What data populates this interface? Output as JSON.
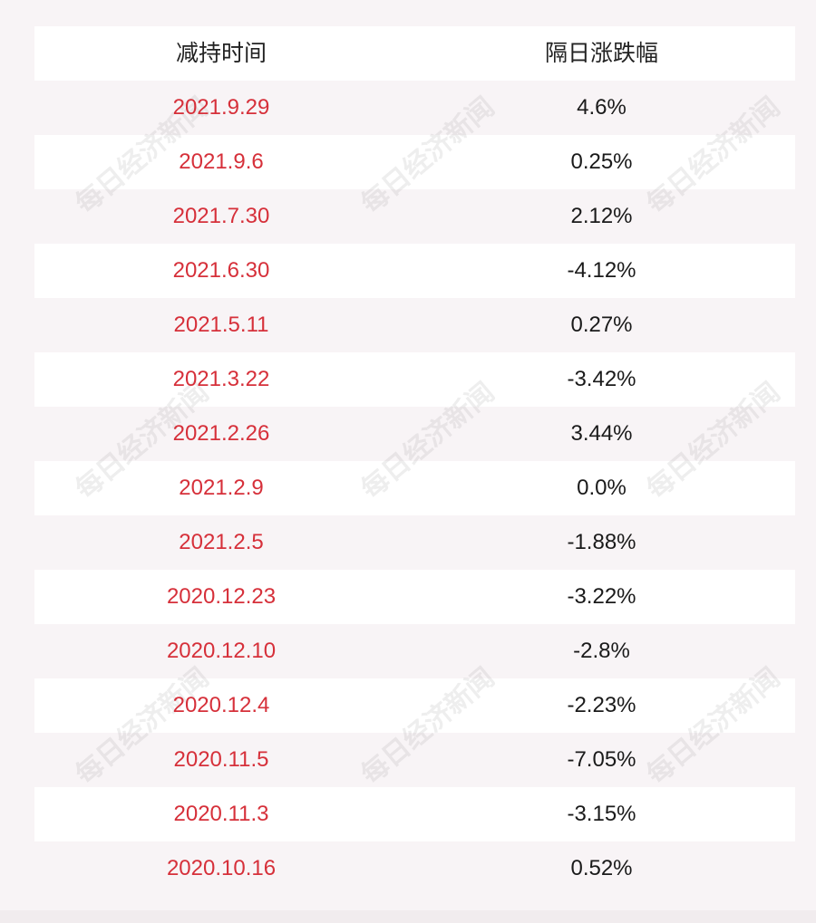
{
  "header": {
    "col1": "减持时间",
    "col2": "隔日涨跌幅"
  },
  "rows": [
    {
      "date": "2021.9.29",
      "change": "4.6%"
    },
    {
      "date": "2021.9.6",
      "change": "0.25%"
    },
    {
      "date": "2021.7.30",
      "change": "2.12%"
    },
    {
      "date": "2021.6.30",
      "change": "-4.12%"
    },
    {
      "date": "2021.5.11",
      "change": "0.27%"
    },
    {
      "date": "2021.3.22",
      "change": "-3.42%"
    },
    {
      "date": "2021.2.26",
      "change": "3.44%"
    },
    {
      "date": "2021.2.9",
      "change": "0.0%"
    },
    {
      "date": "2021.2.5",
      "change": "-1.88%"
    },
    {
      "date": "2020.12.23",
      "change": "-3.22%"
    },
    {
      "date": "2020.12.10",
      "change": "-2.8%"
    },
    {
      "date": "2020.12.4",
      "change": "-2.23%"
    },
    {
      "date": "2020.11.5",
      "change": "-7.05%"
    },
    {
      "date": "2020.11.3",
      "change": "-3.15%"
    },
    {
      "date": "2020.10.16",
      "change": "0.52%"
    }
  ],
  "watermark": "每日经济新闻",
  "colors": {
    "date_text": "#d6303a",
    "change_text": "#1a1a1a",
    "stripe": "#ffffff",
    "background": "#f8f4f6"
  }
}
